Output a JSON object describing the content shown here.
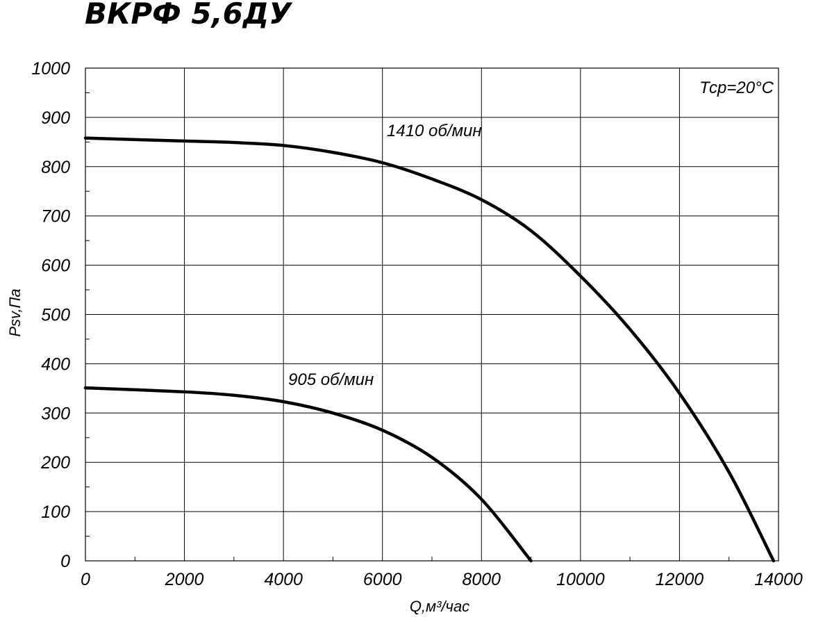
{
  "chart_data": {
    "type": "line",
    "title": "ВКРФ 5,6ДУ",
    "xlabel": "Q,м³/час",
    "ylabel": "Psv,Па",
    "xlim": [
      0,
      14000
    ],
    "ylim": [
      0,
      1000
    ],
    "xticks": [
      "0",
      "2000",
      "4000",
      "6000",
      "8000",
      "10000",
      "12000",
      "14000"
    ],
    "yticks": [
      "0",
      "100",
      "200",
      "300",
      "400",
      "500",
      "600",
      "700",
      "800",
      "900",
      "1000"
    ],
    "grid": true,
    "annotation": "Тср=20°С",
    "series": [
      {
        "name": "1410 об/мин",
        "x": [
          0,
          2000,
          3000,
          4000,
          5000,
          6000,
          7000,
          8000,
          9000,
          10000,
          11000,
          12000,
          13000,
          13900
        ],
        "y": [
          858,
          852,
          849,
          843,
          829,
          808,
          775,
          733,
          670,
          578,
          470,
          340,
          180,
          0
        ]
      },
      {
        "name": "905 об/мин",
        "x": [
          0,
          2000,
          3000,
          4000,
          5000,
          6000,
          7000,
          8000,
          9000
        ],
        "y": [
          351,
          343,
          336,
          323,
          300,
          265,
          210,
          125,
          0
        ]
      }
    ]
  }
}
